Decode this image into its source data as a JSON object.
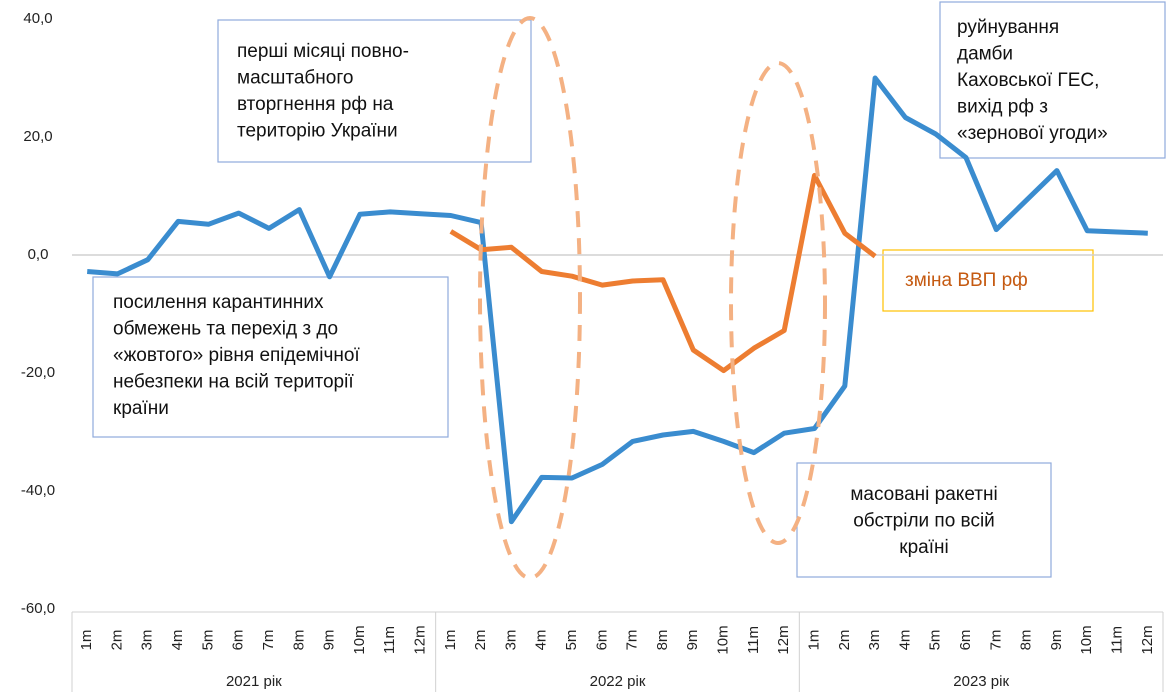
{
  "chart_data": {
    "type": "line",
    "categories": [
      "1m",
      "2m",
      "3m",
      "4m",
      "5m",
      "6m",
      "7m",
      "8m",
      "9m",
      "10m",
      "11m",
      "12m",
      "1m",
      "2m",
      "3m",
      "4m",
      "5m",
      "6m",
      "7m",
      "8m",
      "9m",
      "10m",
      "11m",
      "12m",
      "1m",
      "2m",
      "3m",
      "4m",
      "5m",
      "6m",
      "7m",
      "8m",
      "9m",
      "10m",
      "11m",
      "12m"
    ],
    "groups": [
      "2021 рік",
      "2022 рік",
      "2023 рік"
    ],
    "series": [
      {
        "color": "#3a8ccf",
        "values": [
          -2.8,
          -3.2,
          -0.8,
          5.7,
          5.2,
          7.1,
          4.5,
          7.7,
          -3.7,
          6.9,
          7.3,
          7.0,
          6.7,
          5.5,
          -45.2,
          -37.7,
          -37.8,
          -35.5,
          -31.6,
          -30.5,
          -29.9,
          -31.6,
          -33.5,
          -30.2,
          -29.4,
          -22.2,
          30.0,
          23.3,
          20.5,
          16.5,
          4.3,
          9.3,
          14.3,
          4.1,
          3.9,
          3.7
        ]
      },
      {
        "name": "зміна ВВП рф",
        "color": "#ed7d31",
        "values": [
          null,
          null,
          null,
          null,
          null,
          null,
          null,
          null,
          null,
          null,
          null,
          null,
          4.0,
          0.9,
          1.3,
          -2.8,
          -3.6,
          -5.1,
          -4.4,
          -4.2,
          -16.1,
          -19.6,
          -15.8,
          -12.8,
          13.5,
          3.7,
          -0.2,
          null,
          null,
          null,
          null,
          null,
          null,
          null,
          null,
          null
        ]
      }
    ],
    "ylim": [
      -60,
      40
    ],
    "yticks": [
      {
        "value": -60,
        "label": "-60,0"
      },
      {
        "value": -40,
        "label": "-40,0"
      },
      {
        "value": -20,
        "label": "-20,0"
      },
      {
        "value": 0,
        "label": "0,0"
      },
      {
        "value": 20,
        "label": "20,0"
      },
      {
        "value": 40,
        "label": "40,0"
      }
    ],
    "annotations": [
      {
        "lines": [
          "перші місяці повно-",
          "масштабного",
          "вторгнення рф на",
          "територію України"
        ]
      },
      {
        "lines": [
          "посилення карантинних",
          "обмежень та перехід з до",
          "«жовтого» рівня епідемічної",
          "небезпеки на всій території",
          "країни"
        ]
      },
      {
        "lines": [
          "масовані ракетні",
          "обстріли по всій",
          "країні"
        ]
      },
      {
        "lines": [
          "руйнування",
          "дамби",
          "Каховської ГЕС,",
          "вихід рф з",
          "«зернової угоди»"
        ]
      }
    ]
  }
}
